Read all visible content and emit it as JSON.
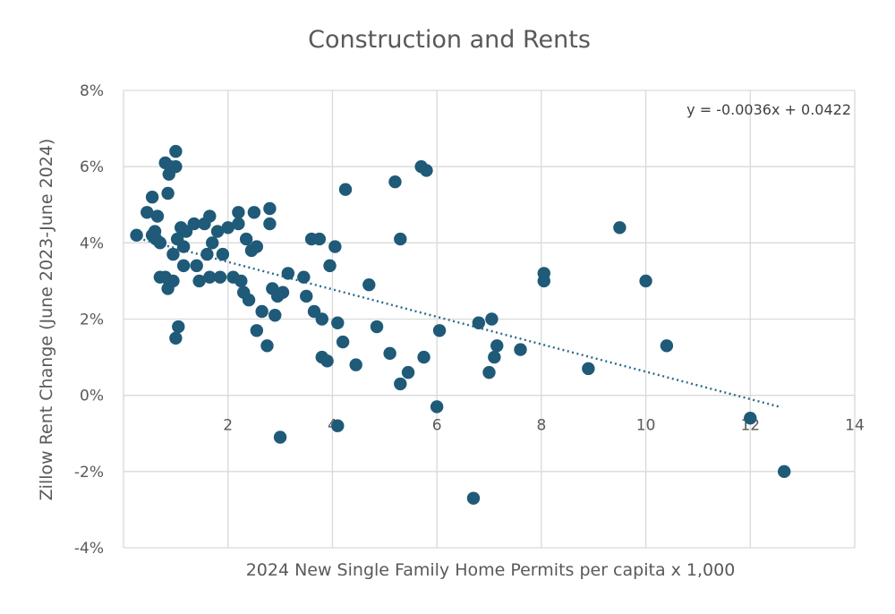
{
  "chart_data": {
    "type": "scatter",
    "title": "Construction and Rents",
    "xlabel": "2024 New Single Family Home Permits per capita x 1,000",
    "ylabel": "Zillow Rent Change (June 2023-June 2024)",
    "xlim": [
      0,
      14
    ],
    "ylim": [
      -0.04,
      0.08
    ],
    "x_ticks": [
      2,
      4,
      6,
      8,
      10,
      12,
      14
    ],
    "y_ticks": [
      {
        "value": -0.04,
        "label": "-4%"
      },
      {
        "value": -0.02,
        "label": "-2%"
      },
      {
        "value": 0,
        "label": "0%"
      },
      {
        "value": 0.02,
        "label": "2%"
      },
      {
        "value": 0.04,
        "label": "4%"
      },
      {
        "value": 0.06,
        "label": "6%"
      },
      {
        "value": 0.08,
        "label": "8%"
      }
    ],
    "grid": true,
    "marker_color": "#1f5a78",
    "trendline": {
      "equation": "y = -0.0036x + 0.0422",
      "slope": -0.0036,
      "intercept": 0.0422,
      "x_range": [
        0.2,
        12.6
      ],
      "color": "#2a6b8a",
      "style": "dotted"
    },
    "points": [
      {
        "x": 0.25,
        "y": 0.042
      },
      {
        "x": 0.45,
        "y": 0.048
      },
      {
        "x": 0.55,
        "y": 0.052
      },
      {
        "x": 0.55,
        "y": 0.042
      },
      {
        "x": 0.6,
        "y": 0.043
      },
      {
        "x": 0.62,
        "y": 0.041
      },
      {
        "x": 0.65,
        "y": 0.047
      },
      {
        "x": 0.7,
        "y": 0.04
      },
      {
        "x": 0.7,
        "y": 0.031
      },
      {
        "x": 0.8,
        "y": 0.031
      },
      {
        "x": 0.8,
        "y": 0.061
      },
      {
        "x": 0.85,
        "y": 0.028
      },
      {
        "x": 0.85,
        "y": 0.053
      },
      {
        "x": 0.87,
        "y": 0.058
      },
      {
        "x": 0.9,
        "y": 0.06
      },
      {
        "x": 0.95,
        "y": 0.037
      },
      {
        "x": 0.95,
        "y": 0.03
      },
      {
        "x": 1.0,
        "y": 0.015
      },
      {
        "x": 1.0,
        "y": 0.064
      },
      {
        "x": 1.0,
        "y": 0.06
      },
      {
        "x": 1.03,
        "y": 0.041
      },
      {
        "x": 1.05,
        "y": 0.018
      },
      {
        "x": 1.1,
        "y": 0.044
      },
      {
        "x": 1.15,
        "y": 0.039
      },
      {
        "x": 1.15,
        "y": 0.034
      },
      {
        "x": 1.2,
        "y": 0.043
      },
      {
        "x": 1.35,
        "y": 0.045
      },
      {
        "x": 1.4,
        "y": 0.034
      },
      {
        "x": 1.45,
        "y": 0.03
      },
      {
        "x": 1.55,
        "y": 0.045
      },
      {
        "x": 1.6,
        "y": 0.037
      },
      {
        "x": 1.65,
        "y": 0.047
      },
      {
        "x": 1.65,
        "y": 0.031
      },
      {
        "x": 1.7,
        "y": 0.04
      },
      {
        "x": 1.8,
        "y": 0.043
      },
      {
        "x": 1.85,
        "y": 0.031
      },
      {
        "x": 1.9,
        "y": 0.037
      },
      {
        "x": 2.0,
        "y": 0.044
      },
      {
        "x": 2.1,
        "y": 0.031
      },
      {
        "x": 2.2,
        "y": 0.048
      },
      {
        "x": 2.2,
        "y": 0.045
      },
      {
        "x": 2.25,
        "y": 0.03
      },
      {
        "x": 2.3,
        "y": 0.027
      },
      {
        "x": 2.35,
        "y": 0.041
      },
      {
        "x": 2.4,
        "y": 0.025
      },
      {
        "x": 2.45,
        "y": 0.038
      },
      {
        "x": 2.5,
        "y": 0.048
      },
      {
        "x": 2.55,
        "y": 0.017
      },
      {
        "x": 2.55,
        "y": 0.039
      },
      {
        "x": 2.65,
        "y": 0.022
      },
      {
        "x": 2.75,
        "y": 0.013
      },
      {
        "x": 2.8,
        "y": 0.049
      },
      {
        "x": 2.8,
        "y": 0.045
      },
      {
        "x": 2.85,
        "y": 0.028
      },
      {
        "x": 2.9,
        "y": 0.021
      },
      {
        "x": 2.95,
        "y": 0.026
      },
      {
        "x": 3.0,
        "y": -0.011
      },
      {
        "x": 3.05,
        "y": 0.027
      },
      {
        "x": 3.15,
        "y": 0.032
      },
      {
        "x": 3.45,
        "y": 0.031
      },
      {
        "x": 3.5,
        "y": 0.026
      },
      {
        "x": 3.6,
        "y": 0.041
      },
      {
        "x": 3.65,
        "y": 0.022
      },
      {
        "x": 3.75,
        "y": 0.041
      },
      {
        "x": 3.8,
        "y": 0.02
      },
      {
        "x": 3.8,
        "y": 0.01
      },
      {
        "x": 3.9,
        "y": 0.009
      },
      {
        "x": 3.95,
        "y": 0.034
      },
      {
        "x": 4.05,
        "y": 0.039
      },
      {
        "x": 4.1,
        "y": 0.019
      },
      {
        "x": 4.1,
        "y": -0.008
      },
      {
        "x": 4.2,
        "y": 0.014
      },
      {
        "x": 4.25,
        "y": 0.054
      },
      {
        "x": 4.45,
        "y": 0.008
      },
      {
        "x": 4.7,
        "y": 0.029
      },
      {
        "x": 4.85,
        "y": 0.018
      },
      {
        "x": 5.1,
        "y": 0.011
      },
      {
        "x": 5.2,
        "y": 0.056
      },
      {
        "x": 5.3,
        "y": 0.003
      },
      {
        "x": 5.3,
        "y": 0.041
      },
      {
        "x": 5.45,
        "y": 0.006
      },
      {
        "x": 5.7,
        "y": 0.06
      },
      {
        "x": 5.75,
        "y": 0.01
      },
      {
        "x": 5.8,
        "y": 0.059
      },
      {
        "x": 6.0,
        "y": -0.003
      },
      {
        "x": 6.05,
        "y": 0.017
      },
      {
        "x": 6.7,
        "y": -0.027
      },
      {
        "x": 6.8,
        "y": 0.019
      },
      {
        "x": 7.0,
        "y": 0.006
      },
      {
        "x": 7.05,
        "y": 0.02
      },
      {
        "x": 7.1,
        "y": 0.01
      },
      {
        "x": 7.15,
        "y": 0.013
      },
      {
        "x": 7.6,
        "y": 0.012
      },
      {
        "x": 8.05,
        "y": 0.032
      },
      {
        "x": 8.05,
        "y": 0.03
      },
      {
        "x": 8.9,
        "y": 0.007
      },
      {
        "x": 9.5,
        "y": 0.044
      },
      {
        "x": 10.0,
        "y": 0.03
      },
      {
        "x": 10.4,
        "y": 0.013
      },
      {
        "x": 12.0,
        "y": -0.006
      },
      {
        "x": 12.65,
        "y": -0.02
      }
    ]
  }
}
